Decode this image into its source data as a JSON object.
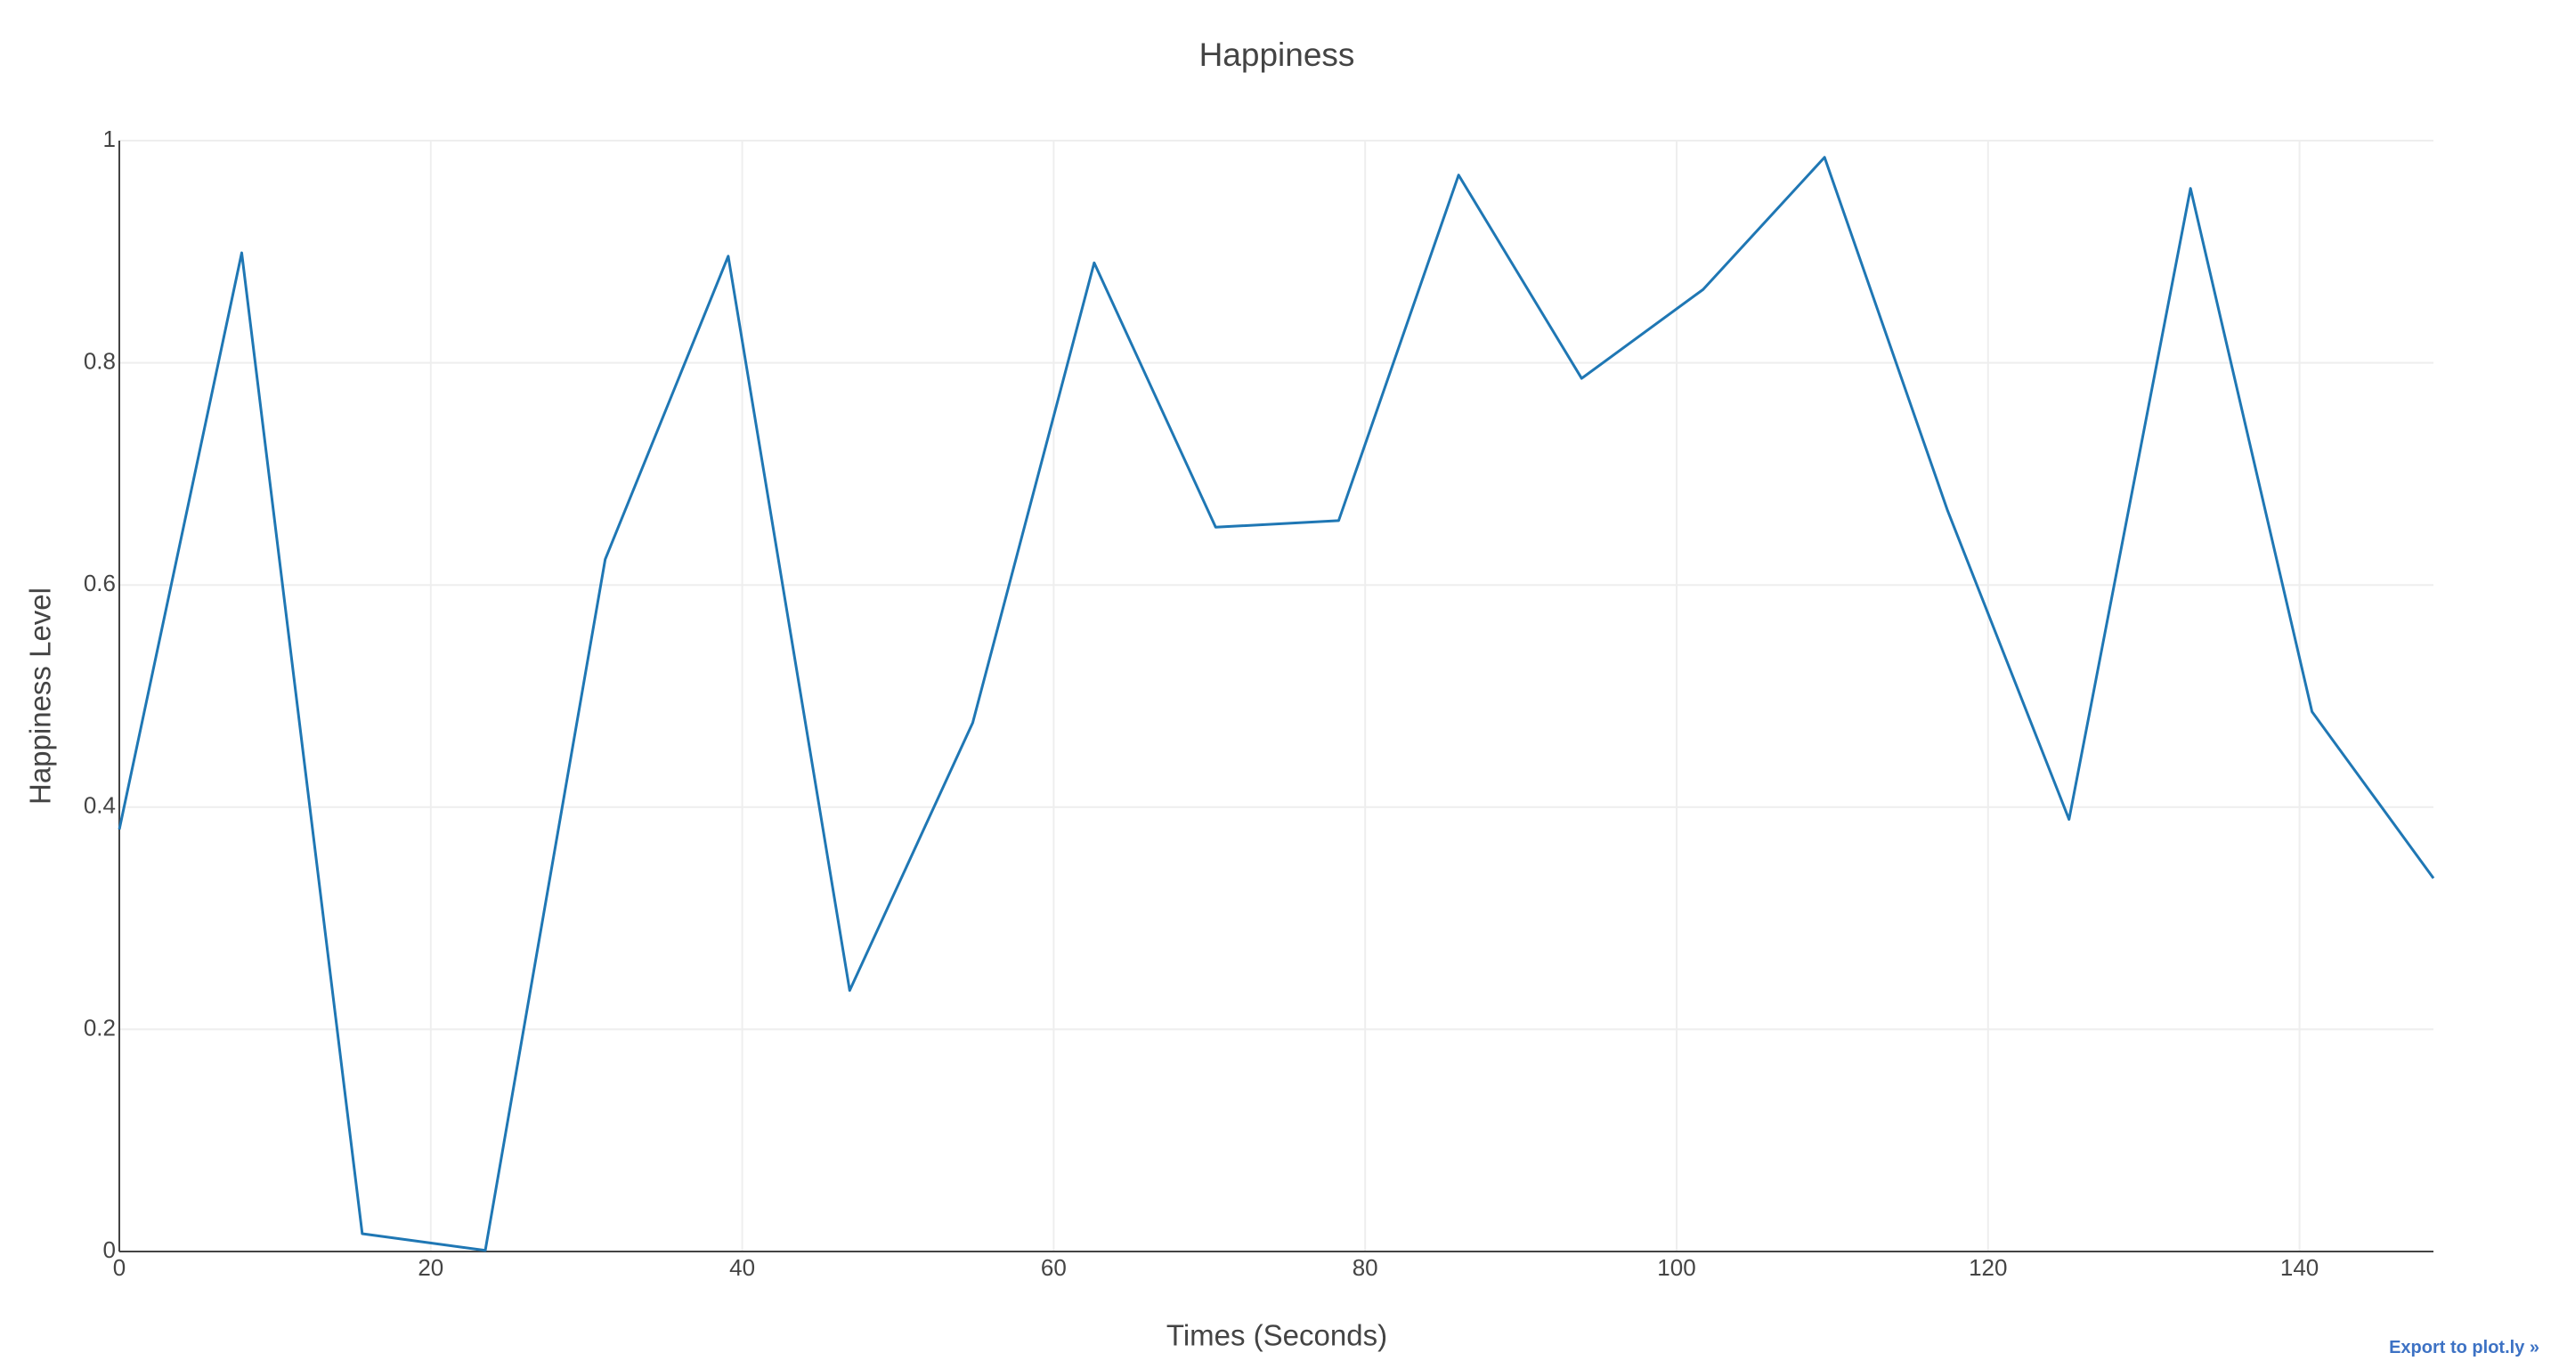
{
  "chart_data": {
    "type": "line",
    "title": "Happiness",
    "x_label": "Times (Seconds)",
    "y_label": "Happiness Level",
    "x": [
      0,
      7.86,
      15.6,
      23.5,
      31.2,
      39.1,
      46.9,
      54.8,
      62.6,
      70.4,
      78.3,
      86.0,
      93.9,
      101.7,
      109.5,
      117.4,
      125.2,
      133.0,
      140.8,
      148.6
    ],
    "series": [
      {
        "name": "Happiness",
        "color": "#1f77b4",
        "values": [
          0.38,
          0.899,
          0.016,
          0.001,
          0.623,
          0.896,
          0.235,
          0.476,
          0.89,
          0.652,
          0.658,
          0.969,
          0.786,
          0.866,
          0.985,
          0.667,
          0.389,
          0.957,
          0.486,
          0.336
        ]
      }
    ],
    "xlim": [
      0,
      148.6
    ],
    "xticks": [
      0,
      20,
      40,
      60,
      80,
      100,
      120,
      140
    ],
    "ylim": [
      0,
      1
    ],
    "yticks": [
      0,
      0.2,
      0.4,
      0.6,
      0.8,
      1
    ],
    "grid": true
  },
  "export_link": "Export to plot.ly »"
}
